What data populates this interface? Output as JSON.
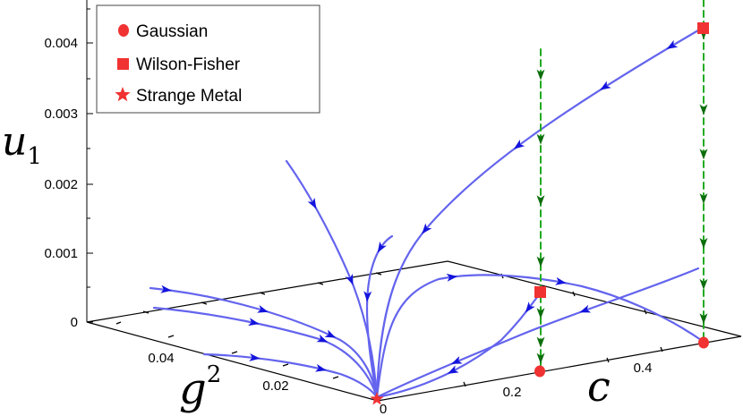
{
  "chart_data": {
    "type": "line",
    "title": "",
    "axes": {
      "c": {
        "label": "c",
        "ticks": [
          "0",
          "0.2",
          "0.4"
        ],
        "range": [
          0,
          0.5
        ]
      },
      "g2": {
        "label": "g",
        "label_exp": "2",
        "ticks": [
          "0.02",
          "0.04"
        ],
        "range": [
          0,
          0.05
        ]
      },
      "u1": {
        "label": "u",
        "label_sub": "1",
        "ticks": [
          "0",
          "0.001",
          "0.002",
          "0.003",
          "0.004"
        ],
        "range": [
          0,
          0.0045
        ]
      }
    },
    "legend": {
      "placement": "top-left",
      "entries": [
        {
          "label": "Gaussian",
          "marker": "circle"
        },
        {
          "label": "Wilson-Fisher",
          "marker": "square"
        },
        {
          "label": "Strange Metal",
          "marker": "star"
        }
      ]
    },
    "fixed_points": [
      {
        "type": "Strange Metal",
        "c": 0,
        "g2": 0,
        "u1": 0
      },
      {
        "type": "Gaussian",
        "c": 0.25,
        "g2": 0,
        "u1": 0
      },
      {
        "type": "Wilson-Fisher",
        "c": 0.25,
        "g2": 0,
        "u1": 0.00043
      },
      {
        "type": "Gaussian",
        "c": 0.5,
        "g2": 0,
        "u1": 0
      },
      {
        "type": "Wilson-Fisher",
        "c": 0.5,
        "g2": 0,
        "u1": 0.0042
      }
    ],
    "flow_lines": [
      {
        "style": "solid",
        "direction": "toward strange metal",
        "points": [
          [
            0.5,
            0,
            0.0042
          ],
          [
            0.25,
            0.01,
            0.0016
          ],
          [
            0.03,
            0.005,
            0.0004
          ],
          [
            0,
            0,
            0
          ]
        ]
      },
      {
        "style": "solid",
        "direction": "toward strange metal",
        "points": [
          [
            0,
            0.043,
            0.0023
          ],
          [
            0,
            0.03,
            0.0008
          ],
          [
            0,
            0,
            0
          ]
        ]
      },
      {
        "style": "solid",
        "direction": "toward strange metal",
        "points": [
          [
            0,
            0.05,
            0
          ],
          [
            0,
            0.03,
            0
          ],
          [
            0,
            0,
            0
          ]
        ]
      },
      {
        "style": "solid",
        "direction": "toward strange metal",
        "points": [
          [
            0,
            0.032,
            0
          ],
          [
            0,
            0.02,
            0
          ],
          [
            0,
            0,
            0
          ]
        ]
      },
      {
        "style": "solid",
        "direction": "toward strange metal",
        "points": [
          [
            0,
            0.02,
            0.0011
          ],
          [
            0,
            0.01,
            0.0004
          ],
          [
            0,
            0,
            0
          ]
        ]
      },
      {
        "style": "solid",
        "direction": "away from Wilson-Fisher",
        "points": [
          [
            0.25,
            0,
            0.00043
          ],
          [
            0.35,
            0,
            0.0003
          ],
          [
            0.5,
            0,
            0
          ]
        ]
      },
      {
        "style": "solid",
        "direction": "toward strange metal",
        "points": [
          [
            0.25,
            0,
            0.00043
          ],
          [
            0.1,
            0,
            0.0002
          ],
          [
            0,
            0,
            0
          ]
        ]
      },
      {
        "style": "solid",
        "direction": "toward strange metal",
        "points": [
          [
            0.5,
            0,
            0.0008
          ],
          [
            0.25,
            0,
            0.0003
          ],
          [
            0,
            0,
            0
          ]
        ]
      },
      {
        "style": "dashed",
        "direction": "vertical, toward Wilson-Fisher",
        "points": [
          [
            0.25,
            0,
            0.0039
          ],
          [
            0.25,
            0,
            0.00043
          ],
          [
            0.25,
            0,
            0
          ]
        ]
      },
      {
        "style": "dashed",
        "direction": "vertical, toward Wilson-Fisher",
        "points": [
          [
            0.5,
            0,
            0
          ],
          [
            0.5,
            0,
            0.0042
          ],
          [
            0.5,
            0,
            0.0045
          ]
        ]
      }
    ],
    "colors": {
      "flow": "#6464ee",
      "arrow": "#1414dd",
      "dashed": "#22aa22",
      "dashed_arrow": "#0c6d0c",
      "fixed_point": "#f03232"
    }
  }
}
